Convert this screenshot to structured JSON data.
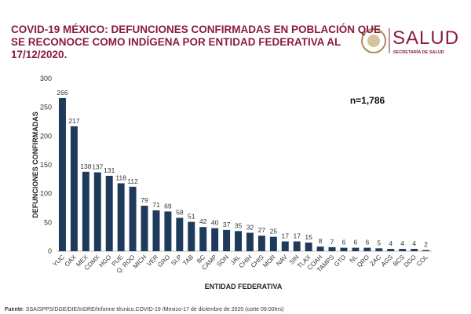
{
  "header": {
    "logo_text": "SALUD",
    "logo_subtext": "SECRETARÍA DE SALUD"
  },
  "chart_data": {
    "type": "bar",
    "title": [
      "COVID-19 MÉXICO: DEFUNCIONES CONFIRMADAS EN POBLACIÓN QUE",
      "SE RECONOCE COMO INDÍGENA POR ENTIDAD FEDERATIVA AL",
      "17/12/2020."
    ],
    "annotation": "n=1,786",
    "x_label": "ENTIDAD FEDERATIVA",
    "y_label": "DEFUNCIONES CONFIRMADAS",
    "categories": [
      "YUC",
      "OAX",
      "MEX",
      "CDMX",
      "HGO",
      "PUE",
      "Q. ROO",
      "MICH",
      "VER",
      "GRO",
      "SLP",
      "TAB",
      "BC",
      "CAMP",
      "SON",
      "JAL",
      "CHIH",
      "CHIS",
      "MOR",
      "NAV",
      "SIN",
      "TLAX",
      "COAH",
      "TAMPS",
      "GTO",
      "NL",
      "QRO",
      "ZAC",
      "AGS",
      "BCS",
      "DGO",
      "COL"
    ],
    "values": [
      266,
      217,
      138,
      137,
      131,
      118,
      112,
      79,
      71,
      69,
      58,
      51,
      42,
      40,
      37,
      35,
      32,
      27,
      25,
      17,
      17,
      15,
      8,
      7,
      6,
      6,
      6,
      5,
      4,
      4,
      4,
      2
    ],
    "color": "#1f3b5c",
    "ylim": [
      0,
      300
    ],
    "yticks": [
      0,
      50,
      100,
      150,
      200,
      250,
      300
    ],
    "grid": false
  },
  "footer": {
    "source_label": "Fuente",
    "source_text": ": SSA/SPPS/DGE/DIE/InDRE/Informe técnico.COVID-19 /Mexico-17 de diciembre de 2020 (corte 09:00hrs)"
  }
}
